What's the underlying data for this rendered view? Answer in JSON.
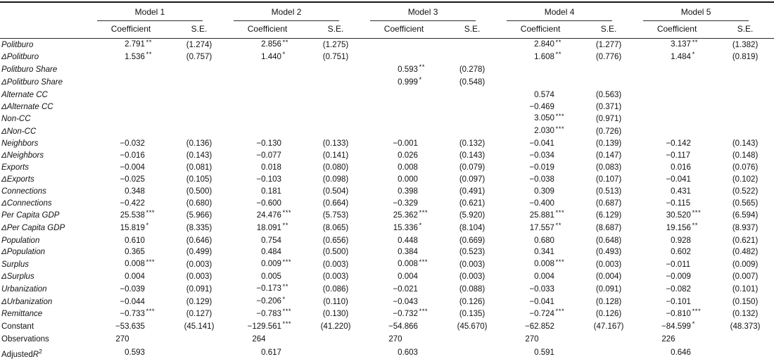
{
  "table": {
    "models": [
      "Model 1",
      "Model 2",
      "Model 3",
      "Model 4",
      "Model 5"
    ],
    "subheader": {
      "coefficient": "Coefficient",
      "se": "S.E."
    },
    "rows": [
      {
        "label": "Politburo",
        "italic": true,
        "cells": [
          [
            "2.791**",
            "(1.274)"
          ],
          [
            "2.856**",
            "(1.275)"
          ],
          [
            "",
            ""
          ],
          [
            "2.840**",
            "(1.277)"
          ],
          [
            "3.137**",
            "(1.382)"
          ]
        ]
      },
      {
        "label": "ΔPolitburo",
        "italic": true,
        "cells": [
          [
            "1.536**",
            "(0.757)"
          ],
          [
            "1.440*",
            "(0.751)"
          ],
          [
            "",
            ""
          ],
          [
            "1.608**",
            "(0.776)"
          ],
          [
            "1.484*",
            "(0.819)"
          ]
        ]
      },
      {
        "label": "Politburo Share",
        "italic": true,
        "cells": [
          [
            "",
            ""
          ],
          [
            "",
            ""
          ],
          [
            "0.593**",
            "(0.278)"
          ],
          [
            "",
            ""
          ],
          [
            "",
            ""
          ]
        ]
      },
      {
        "label": "ΔPolitburo Share",
        "italic": true,
        "cells": [
          [
            "",
            ""
          ],
          [
            "",
            ""
          ],
          [
            "0.999*",
            "(0.548)"
          ],
          [
            "",
            ""
          ],
          [
            "",
            ""
          ]
        ]
      },
      {
        "label": "Alternate CC",
        "italic": true,
        "cells": [
          [
            "",
            ""
          ],
          [
            "",
            ""
          ],
          [
            "",
            ""
          ],
          [
            "0.574",
            "(0.563)"
          ],
          [
            "",
            ""
          ]
        ]
      },
      {
        "label": "ΔAlternate CC",
        "italic": true,
        "cells": [
          [
            "",
            ""
          ],
          [
            "",
            ""
          ],
          [
            "",
            ""
          ],
          [
            "−0.469",
            "(0.371)"
          ],
          [
            "",
            ""
          ]
        ]
      },
      {
        "label": "Non-CC",
        "italic": true,
        "cells": [
          [
            "",
            ""
          ],
          [
            "",
            ""
          ],
          [
            "",
            ""
          ],
          [
            "3.050***",
            "(0.971)"
          ],
          [
            "",
            ""
          ]
        ]
      },
      {
        "label": "ΔNon-CC",
        "italic": true,
        "cells": [
          [
            "",
            ""
          ],
          [
            "",
            ""
          ],
          [
            "",
            ""
          ],
          [
            "2.030***",
            "(0.726)"
          ],
          [
            "",
            ""
          ]
        ]
      },
      {
        "label": "Neighbors",
        "italic": true,
        "cells": [
          [
            "−0.032",
            "(0.136)"
          ],
          [
            "−0.130",
            "(0.133)"
          ],
          [
            "−0.001",
            "(0.132)"
          ],
          [
            "−0.041",
            "(0.139)"
          ],
          [
            "−0.142",
            "(0.143)"
          ]
        ]
      },
      {
        "label": "ΔNeighbors",
        "italic": true,
        "cells": [
          [
            "−0.016",
            "(0.143)"
          ],
          [
            "−0.077",
            "(0.141)"
          ],
          [
            "0.026",
            "(0.143)"
          ],
          [
            "−0.034",
            "(0.147)"
          ],
          [
            "−0.117",
            "(0.148)"
          ]
        ]
      },
      {
        "label": "Exports",
        "italic": true,
        "cells": [
          [
            "−0.004",
            "(0.081)"
          ],
          [
            "0.018",
            "(0.080)"
          ],
          [
            "0.008",
            "(0.079)"
          ],
          [
            "−0.019",
            "(0.083)"
          ],
          [
            "0.016",
            "(0.076)"
          ]
        ]
      },
      {
        "label": "ΔExports",
        "italic": true,
        "cells": [
          [
            "−0.025",
            "(0.105)"
          ],
          [
            "−0.103",
            "(0.098)"
          ],
          [
            "0.000",
            "(0.097)"
          ],
          [
            "−0.038",
            "(0.107)"
          ],
          [
            "−0.041",
            "(0.102)"
          ]
        ]
      },
      {
        "label": "Connections",
        "italic": true,
        "cells": [
          [
            "0.348",
            "(0.500)"
          ],
          [
            "0.181",
            "(0.504)"
          ],
          [
            "0.398",
            "(0.491)"
          ],
          [
            "0.309",
            "(0.513)"
          ],
          [
            "0.431",
            "(0.522)"
          ]
        ]
      },
      {
        "label": "ΔConnections",
        "italic": true,
        "cells": [
          [
            "−0.422",
            "(0.680)"
          ],
          [
            "−0.600",
            "(0.664)"
          ],
          [
            "−0.329",
            "(0.621)"
          ],
          [
            "−0.400",
            "(0.687)"
          ],
          [
            "−0.115",
            "(0.565)"
          ]
        ]
      },
      {
        "label": "Per Capita GDP",
        "italic": true,
        "cells": [
          [
            "25.538***",
            "(5.966)"
          ],
          [
            "24.476***",
            "(5.753)"
          ],
          [
            "25.362***",
            "(5.920)"
          ],
          [
            "25.881***",
            "(6.129)"
          ],
          [
            "30.520***",
            "(6.594)"
          ]
        ]
      },
      {
        "label": "ΔPer Capita GDP",
        "italic": true,
        "cells": [
          [
            "15.819*",
            "(8.335)"
          ],
          [
            "18.091**",
            "(8.065)"
          ],
          [
            "15.336*",
            "(8.104)"
          ],
          [
            "17.557**",
            "(8.687)"
          ],
          [
            "19.156**",
            "(8.937)"
          ]
        ]
      },
      {
        "label": "Population",
        "italic": true,
        "cells": [
          [
            "0.610",
            "(0.646)"
          ],
          [
            "0.754",
            "(0.656)"
          ],
          [
            "0.448",
            "(0.669)"
          ],
          [
            "0.680",
            "(0.648)"
          ],
          [
            "0.928",
            "(0.621)"
          ]
        ]
      },
      {
        "label": "ΔPopulation",
        "italic": true,
        "cells": [
          [
            "0.365",
            "(0.499)"
          ],
          [
            "0.484",
            "(0.500)"
          ],
          [
            "0.384",
            "(0.523)"
          ],
          [
            "0.341",
            "(0.493)"
          ],
          [
            "0.602",
            "(0.482)"
          ]
        ]
      },
      {
        "label": "Surplus",
        "italic": true,
        "cells": [
          [
            "0.008***",
            "(0.003)"
          ],
          [
            "0.009***",
            "(0.003)"
          ],
          [
            "0.008***",
            "(0.003)"
          ],
          [
            "0.008***",
            "(0.003)"
          ],
          [
            "−0.011",
            "(0.009)"
          ]
        ]
      },
      {
        "label": "ΔSurplus",
        "italic": true,
        "cells": [
          [
            "0.004",
            "(0.003)"
          ],
          [
            "0.005",
            "(0.003)"
          ],
          [
            "0.004",
            "(0.003)"
          ],
          [
            "0.004",
            "(0.004)"
          ],
          [
            "−0.009",
            "(0.007)"
          ]
        ]
      },
      {
        "label": "Urbanization",
        "italic": true,
        "cells": [
          [
            "−0.039",
            "(0.091)"
          ],
          [
            "−0.173**",
            "(0.086)"
          ],
          [
            "−0.021",
            "(0.088)"
          ],
          [
            "−0.033",
            "(0.091)"
          ],
          [
            "−0.082",
            "(0.101)"
          ]
        ]
      },
      {
        "label": "ΔUrbanization",
        "italic": true,
        "cells": [
          [
            "−0.044",
            "(0.129)"
          ],
          [
            "−0.206*",
            "(0.110)"
          ],
          [
            "−0.043",
            "(0.126)"
          ],
          [
            "−0.041",
            "(0.128)"
          ],
          [
            "−0.101",
            "(0.150)"
          ]
        ]
      },
      {
        "label": "Remittance",
        "italic": true,
        "cells": [
          [
            "−0.733***",
            "(0.127)"
          ],
          [
            "−0.783***",
            "(0.130)"
          ],
          [
            "−0.732***",
            "(0.135)"
          ],
          [
            "−0.724***",
            "(0.126)"
          ],
          [
            "−0.810***",
            "(0.132)"
          ]
        ]
      },
      {
        "label": "Constant",
        "italic": false,
        "cells": [
          [
            "−53.635",
            "(45.141)"
          ],
          [
            "−129.561***",
            "(41.220)"
          ],
          [
            "−54.866",
            "(45.670)"
          ],
          [
            "−62.852",
            "(47.167)"
          ],
          [
            "−84.599*",
            "(48.373)"
          ]
        ]
      },
      {
        "label": "Observations",
        "italic": false,
        "cells": [
          [
            "270",
            ""
          ],
          [
            "264",
            ""
          ],
          [
            "270",
            ""
          ],
          [
            "270",
            ""
          ],
          [
            "226",
            ""
          ]
        ]
      },
      {
        "label": "Adjusted",
        "italic": false,
        "label_r": "R",
        "label_sup": "2",
        "cells": [
          [
            "0.593",
            ""
          ],
          [
            "0.617",
            ""
          ],
          [
            "0.603",
            ""
          ],
          [
            "0.591",
            ""
          ],
          [
            "0.646",
            ""
          ]
        ]
      }
    ]
  }
}
